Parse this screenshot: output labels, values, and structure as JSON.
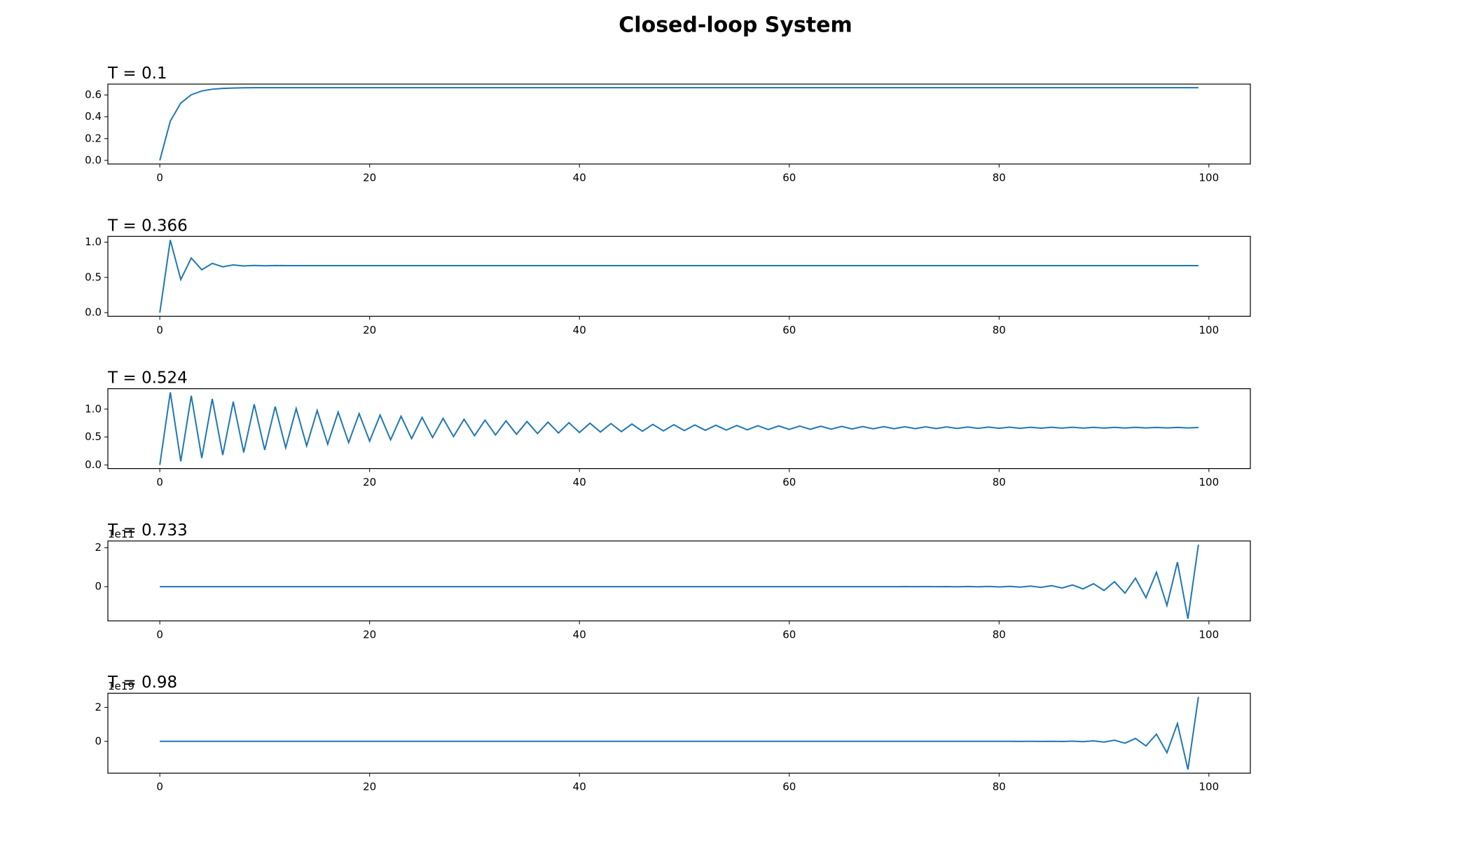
{
  "title": "Closed-loop System",
  "chart_data": [
    {
      "type": "line",
      "title": "T = 0.1",
      "color": "#1f77b4",
      "x": [
        0,
        1,
        2,
        3,
        4,
        5,
        6,
        7,
        8,
        9,
        10,
        11,
        12,
        13,
        14,
        15,
        16,
        17,
        18,
        19,
        20,
        21,
        22,
        23,
        24,
        25,
        26,
        27,
        28,
        29,
        30,
        31,
        32,
        33,
        34,
        35,
        36,
        37,
        38,
        39,
        40,
        41,
        42,
        43,
        44,
        45,
        46,
        47,
        48,
        49,
        50,
        51,
        52,
        53,
        54,
        55,
        56,
        57,
        58,
        59,
        60,
        61,
        62,
        63,
        64,
        65,
        66,
        67,
        68,
        69,
        70,
        71,
        72,
        73,
        74,
        75,
        76,
        77,
        78,
        79,
        80,
        81,
        82,
        83,
        84,
        85,
        86,
        87,
        88,
        89,
        90,
        91,
        92,
        93,
        94,
        95,
        96,
        97,
        98,
        99
      ],
      "values": [
        0,
        0.36,
        0.526,
        0.602,
        0.637,
        0.653,
        0.661,
        0.664,
        0.666,
        0.667,
        0.667,
        0.667,
        0.667,
        0.667,
        0.667,
        0.667,
        0.667,
        0.667,
        0.667,
        0.667,
        0.667,
        0.667,
        0.667,
        0.667,
        0.667,
        0.667,
        0.667,
        0.667,
        0.667,
        0.667,
        0.667,
        0.667,
        0.667,
        0.667,
        0.667,
        0.667,
        0.667,
        0.667,
        0.667,
        0.667,
        0.667,
        0.667,
        0.667,
        0.667,
        0.667,
        0.667,
        0.667,
        0.667,
        0.667,
        0.667,
        0.667,
        0.667,
        0.667,
        0.667,
        0.667,
        0.667,
        0.667,
        0.667,
        0.667,
        0.667,
        0.667,
        0.667,
        0.667,
        0.667,
        0.667,
        0.667,
        0.667,
        0.667,
        0.667,
        0.667,
        0.667,
        0.667,
        0.667,
        0.667,
        0.667,
        0.667,
        0.667,
        0.667,
        0.667,
        0.667,
        0.667,
        0.667,
        0.667,
        0.667,
        0.667,
        0.667,
        0.667,
        0.667,
        0.667,
        0.667,
        0.667,
        0.667,
        0.667,
        0.667,
        0.667,
        0.667,
        0.667,
        0.667,
        0.667,
        0.667
      ],
      "xlim": [
        -4.95,
        103.95
      ],
      "xticks": [
        0,
        20,
        40,
        60,
        80,
        100
      ],
      "ylim": [
        -0.033,
        0.7
      ],
      "yticks": [
        {
          "value": 0,
          "label": "0.0"
        },
        0.2,
        0.4,
        0.6
      ]
    },
    {
      "type": "line",
      "title": "T = 0.366",
      "color": "#1f77b4",
      "x": [
        0,
        1,
        2,
        3,
        4,
        5,
        6,
        7,
        8,
        9,
        10,
        11,
        12,
        13,
        14,
        15,
        16,
        17,
        18,
        19,
        20,
        21,
        22,
        23,
        24,
        25,
        26,
        27,
        28,
        29,
        30,
        31,
        32,
        33,
        34,
        35,
        36,
        37,
        38,
        39,
        40,
        41,
        42,
        43,
        44,
        45,
        46,
        47,
        48,
        49,
        50,
        51,
        52,
        53,
        54,
        55,
        56,
        57,
        58,
        59,
        60,
        61,
        62,
        63,
        64,
        65,
        66,
        67,
        68,
        69,
        70,
        71,
        72,
        73,
        74,
        75,
        76,
        77,
        78,
        79,
        80,
        81,
        82,
        83,
        84,
        85,
        86,
        87,
        88,
        89,
        90,
        91,
        92,
        93,
        94,
        95,
        96,
        97,
        98,
        99
      ],
      "values": [
        0,
        1.03,
        0.469,
        0.775,
        0.608,
        0.699,
        0.65,
        0.677,
        0.662,
        0.67,
        0.665,
        0.668,
        0.667,
        0.667,
        0.667,
        0.667,
        0.667,
        0.667,
        0.667,
        0.667,
        0.667,
        0.667,
        0.667,
        0.667,
        0.667,
        0.667,
        0.667,
        0.667,
        0.667,
        0.667,
        0.667,
        0.667,
        0.667,
        0.667,
        0.667,
        0.667,
        0.667,
        0.667,
        0.667,
        0.667,
        0.667,
        0.667,
        0.667,
        0.667,
        0.667,
        0.667,
        0.667,
        0.667,
        0.667,
        0.667,
        0.667,
        0.667,
        0.667,
        0.667,
        0.667,
        0.667,
        0.667,
        0.667,
        0.667,
        0.667,
        0.667,
        0.667,
        0.667,
        0.667,
        0.667,
        0.667,
        0.667,
        0.667,
        0.667,
        0.667,
        0.667,
        0.667,
        0.667,
        0.667,
        0.667,
        0.667,
        0.667,
        0.667,
        0.667,
        0.667,
        0.667,
        0.667,
        0.667,
        0.667,
        0.667,
        0.667,
        0.667,
        0.667,
        0.667,
        0.667,
        0.667,
        0.667,
        0.667,
        0.667,
        0.667,
        0.667,
        0.667,
        0.667,
        0.667,
        0.667
      ],
      "xlim": [
        -4.95,
        103.95
      ],
      "xticks": [
        0,
        20,
        40,
        60,
        80,
        100
      ],
      "ylim": [
        -0.0515,
        1.0815
      ],
      "yticks": [
        {
          "value": 0,
          "label": "0.0"
        },
        0.5,
        {
          "value": 1,
          "label": "1.0"
        }
      ]
    },
    {
      "type": "line",
      "title": "T = 0.524",
      "color": "#1f77b4",
      "x": [
        0,
        1,
        2,
        3,
        4,
        5,
        6,
        7,
        8,
        9,
        10,
        11,
        12,
        13,
        14,
        15,
        16,
        17,
        18,
        19,
        20,
        21,
        22,
        23,
        24,
        25,
        26,
        27,
        28,
        29,
        30,
        31,
        32,
        33,
        34,
        35,
        36,
        37,
        38,
        39,
        40,
        41,
        42,
        43,
        44,
        45,
        46,
        47,
        48,
        49,
        50,
        51,
        52,
        53,
        54,
        55,
        56,
        57,
        58,
        59,
        60,
        61,
        62,
        63,
        64,
        65,
        66,
        67,
        68,
        69,
        70,
        71,
        72,
        73,
        74,
        75,
        76,
        77,
        78,
        79,
        80,
        81,
        82,
        83,
        84,
        85,
        86,
        87,
        88,
        89,
        90,
        91,
        92,
        93,
        94,
        95,
        96,
        97,
        98,
        99
      ],
      "values": [
        0,
        1.301,
        0.065,
        1.239,
        0.124,
        1.183,
        0.177,
        1.133,
        0.225,
        1.087,
        0.268,
        1.046,
        0.307,
        1.009,
        0.342,
        0.976,
        0.373,
        0.946,
        0.402,
        0.919,
        0.428,
        0.894,
        0.451,
        0.872,
        0.472,
        0.852,
        0.491,
        0.834,
        0.508,
        0.818,
        0.524,
        0.803,
        0.538,
        0.79,
        0.55,
        0.778,
        0.562,
        0.767,
        0.572,
        0.757,
        0.581,
        0.748,
        0.59,
        0.741,
        0.597,
        0.733,
        0.604,
        0.727,
        0.61,
        0.721,
        0.616,
        0.716,
        0.621,
        0.711,
        0.625,
        0.707,
        0.629,
        0.703,
        0.633,
        0.699,
        0.636,
        0.696,
        0.639,
        0.693,
        0.642,
        0.691,
        0.644,
        0.688,
        0.647,
        0.686,
        0.649,
        0.684,
        0.65,
        0.683,
        0.652,
        0.681,
        0.653,
        0.68,
        0.655,
        0.679,
        0.656,
        0.677,
        0.657,
        0.676,
        0.658,
        0.676,
        0.659,
        0.675,
        0.66,
        0.674,
        0.66,
        0.673,
        0.661,
        0.673,
        0.662,
        0.672,
        0.662,
        0.672,
        0.663,
        0.671
      ],
      "xlim": [
        -4.95,
        103.95
      ],
      "xticks": [
        0,
        20,
        40,
        60,
        80,
        100
      ],
      "ylim": [
        -0.065,
        1.366
      ],
      "yticks": [
        {
          "value": 0,
          "label": "0.0"
        },
        0.5,
        {
          "value": 1,
          "label": "1.0"
        }
      ]
    },
    {
      "type": "line",
      "title": "T = 0.733",
      "offset_label": "1e11",
      "color": "#1f77b4",
      "x": [
        0,
        1,
        2,
        3,
        4,
        5,
        6,
        7,
        8,
        9,
        10,
        11,
        12,
        13,
        14,
        15,
        16,
        17,
        18,
        19,
        20,
        21,
        22,
        23,
        24,
        25,
        26,
        27,
        28,
        29,
        30,
        31,
        32,
        33,
        34,
        35,
        36,
        37,
        38,
        39,
        40,
        41,
        42,
        43,
        44,
        45,
        46,
        47,
        48,
        49,
        50,
        51,
        52,
        53,
        54,
        55,
        56,
        57,
        58,
        59,
        60,
        61,
        62,
        63,
        64,
        65,
        66,
        67,
        68,
        69,
        70,
        71,
        72,
        73,
        74,
        75,
        76,
        77,
        78,
        79,
        80,
        81,
        82,
        83,
        84,
        85,
        86,
        87,
        88,
        89,
        90,
        91,
        92,
        93,
        94,
        95,
        96,
        97,
        98,
        99
      ],
      "values": [
        0,
        0,
        0,
        0,
        0,
        0,
        0,
        0,
        0,
        0,
        0,
        0,
        0,
        0,
        0,
        0,
        0,
        0,
        0,
        0,
        0,
        0,
        0,
        0,
        0,
        0,
        0,
        0,
        0,
        0,
        0,
        0,
        0,
        0,
        0,
        0,
        0,
        0,
        0,
        0,
        0,
        0,
        0,
        0,
        0,
        0,
        0,
        0,
        0,
        0,
        0,
        0,
        0,
        0,
        0,
        0,
        0,
        0,
        0,
        0,
        0,
        0,
        0,
        0,
        0,
        0,
        0,
        0,
        0,
        0,
        -0.0009,
        0.0012,
        -0.0015,
        0.002,
        -0.0026,
        0.0034,
        -0.0045,
        0.006,
        -0.008,
        0.01,
        -0.013,
        0.017,
        -0.023,
        0.03,
        -0.039,
        0.051,
        -0.067,
        0.087,
        -0.114,
        0.149,
        -0.194,
        0.254,
        -0.332,
        0.433,
        -0.566,
        0.74,
        -0.968,
        1.265,
        -1.653,
        2.16
      ],
      "xlim": [
        -4.95,
        103.95
      ],
      "xticks": [
        0,
        20,
        40,
        60,
        80,
        100
      ],
      "ylim": [
        -1.761,
        2.351
      ],
      "yticks": [
        0,
        2
      ]
    },
    {
      "type": "line",
      "title": "T = 0.98",
      "offset_label": "1e19",
      "color": "#1f77b4",
      "x": [
        0,
        1,
        2,
        3,
        4,
        5,
        6,
        7,
        8,
        9,
        10,
        11,
        12,
        13,
        14,
        15,
        16,
        17,
        18,
        19,
        20,
        21,
        22,
        23,
        24,
        25,
        26,
        27,
        28,
        29,
        30,
        31,
        32,
        33,
        34,
        35,
        36,
        37,
        38,
        39,
        40,
        41,
        42,
        43,
        44,
        45,
        46,
        47,
        48,
        49,
        50,
        51,
        52,
        53,
        54,
        55,
        56,
        57,
        58,
        59,
        60,
        61,
        62,
        63,
        64,
        65,
        66,
        67,
        68,
        69,
        70,
        71,
        72,
        73,
        74,
        75,
        76,
        77,
        78,
        79,
        80,
        81,
        82,
        83,
        84,
        85,
        86,
        87,
        88,
        89,
        90,
        91,
        92,
        93,
        94,
        95,
        96,
        97,
        98,
        99
      ],
      "values": [
        0,
        0,
        0,
        0,
        0,
        0,
        0,
        0,
        0,
        0,
        0,
        0,
        0,
        0,
        0,
        0,
        0,
        0,
        0,
        0,
        0,
        0,
        0,
        0,
        0,
        0,
        0,
        0,
        0,
        0,
        0,
        0,
        0,
        0,
        0,
        0,
        0,
        0,
        0,
        0,
        0,
        0,
        0,
        0,
        0,
        0,
        0,
        0,
        0,
        0,
        0,
        0,
        0,
        0,
        0,
        0,
        0,
        0,
        0,
        0,
        0,
        0,
        0,
        0,
        0,
        0,
        0,
        0,
        0,
        0,
        0,
        0,
        0,
        0,
        0,
        0,
        0,
        0,
        0,
        0,
        0,
        0.0007,
        -0.0011,
        0.0018,
        -0.0028,
        0.0045,
        -0.007,
        0.0111,
        -0.0175,
        0.0275,
        -0.0434,
        0.0685,
        -0.108,
        0.17,
        -0.269,
        0.424,
        -0.668,
        1.053,
        -1.661,
        2.62
      ],
      "xlim": [
        -4.95,
        103.95
      ],
      "xticks": [
        0,
        20,
        40,
        60,
        80,
        100
      ],
      "ylim": [
        -1.875,
        2.834
      ],
      "yticks": [
        0,
        2
      ]
    }
  ]
}
